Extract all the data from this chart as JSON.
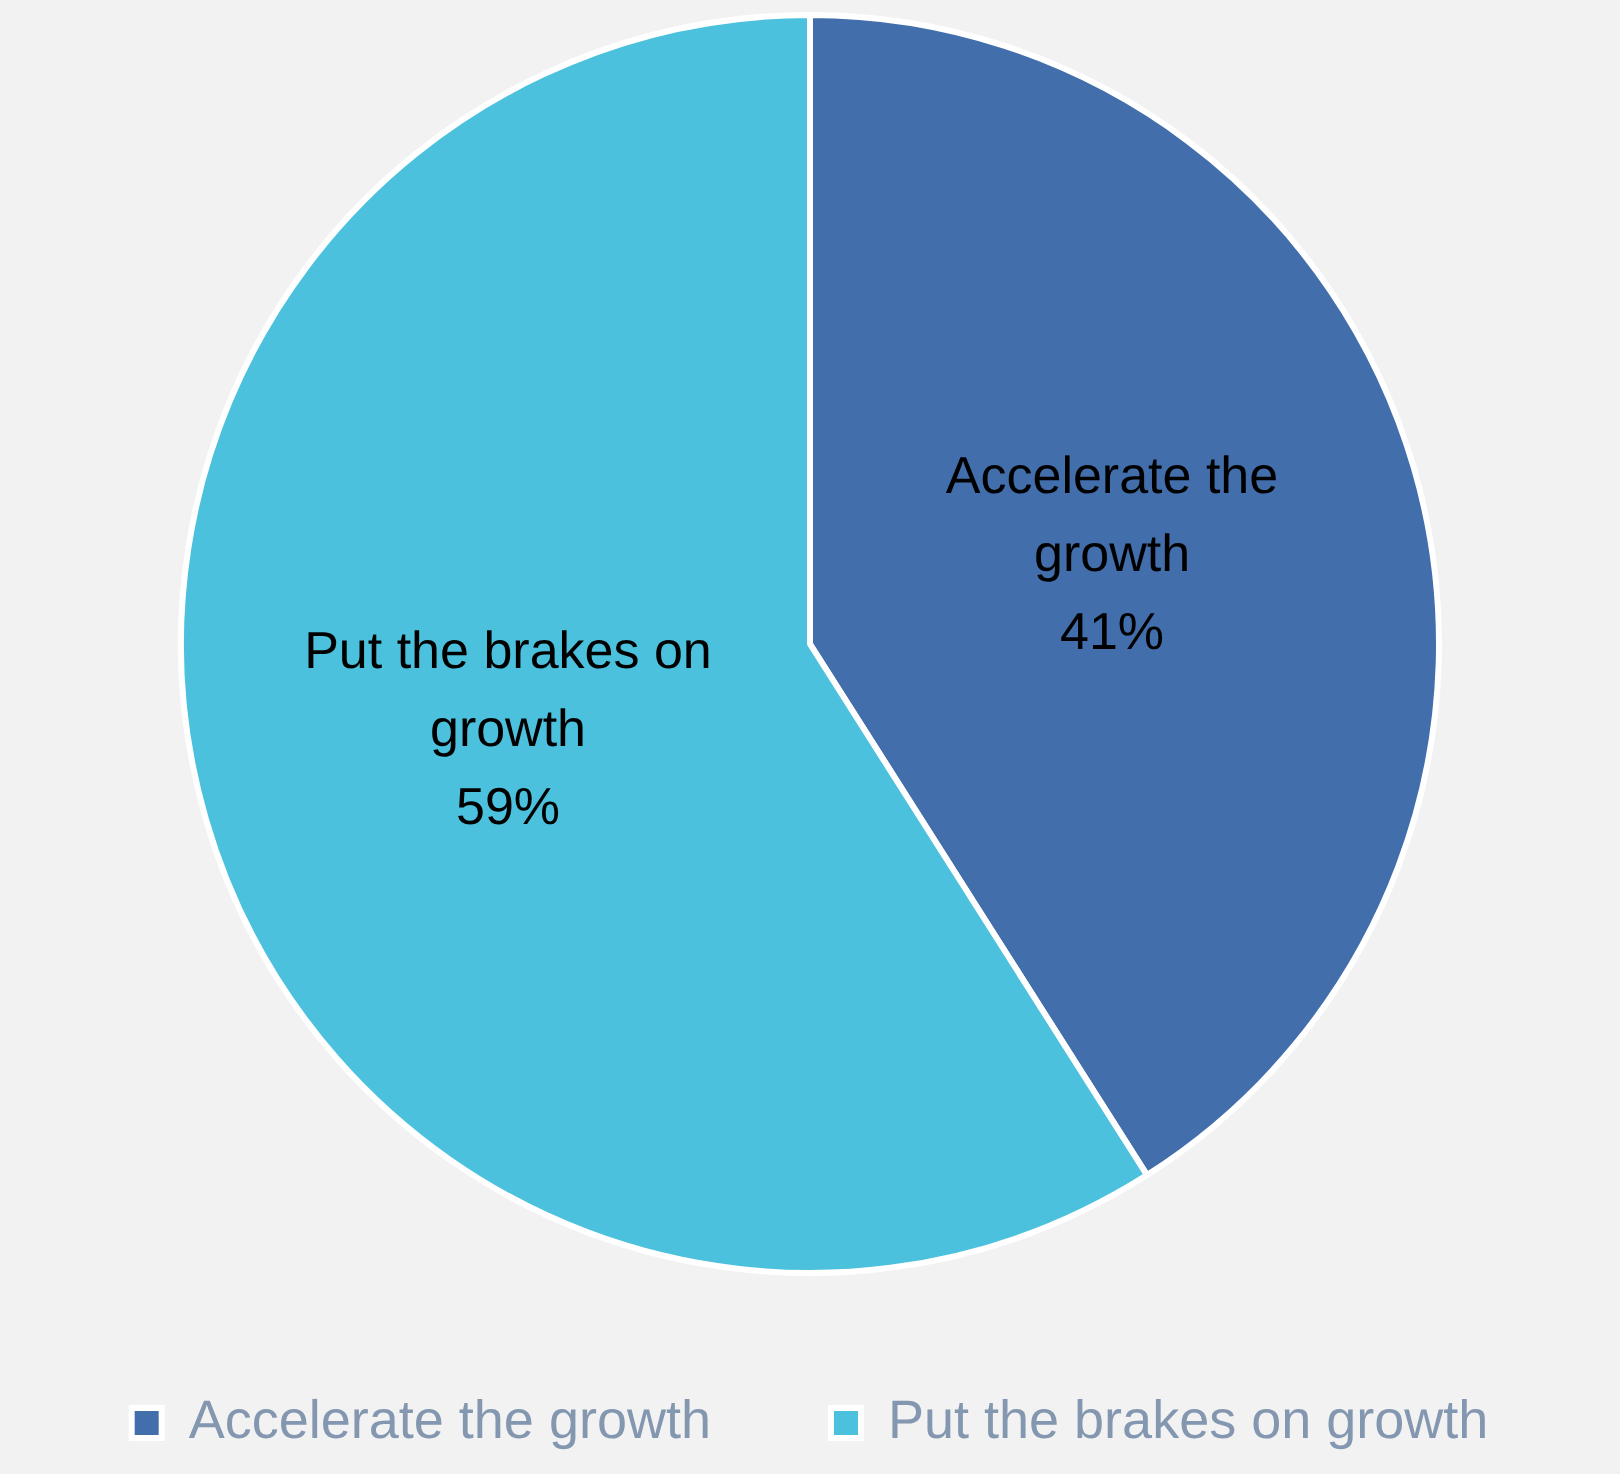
{
  "chart_data": {
    "type": "pie",
    "categories": [
      "Accelerate the growth",
      "Put the brakes on growth"
    ],
    "values": [
      41,
      59
    ],
    "colors": [
      "#426eab",
      "#4bc1de"
    ],
    "value_labels": [
      "41%",
      "59%"
    ],
    "legend": "bottom"
  }
}
